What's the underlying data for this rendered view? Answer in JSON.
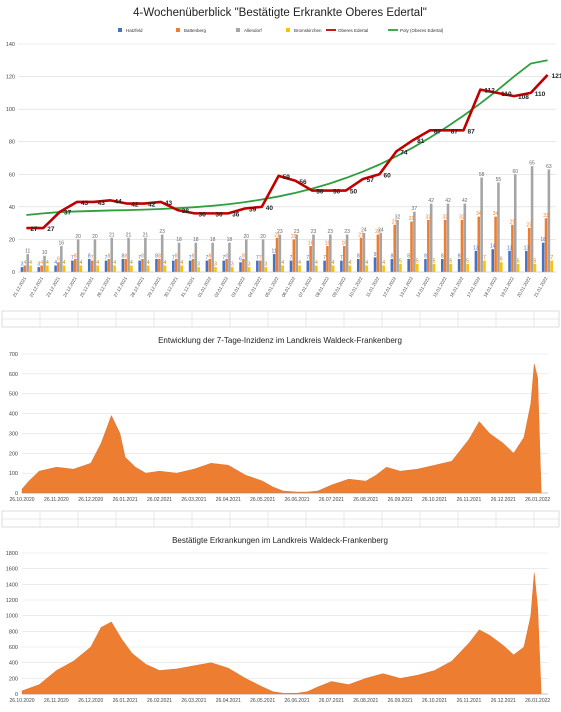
{
  "chart_data": [
    {
      "type": "bar",
      "title": "4-Wochenüberblick \"Bestätigte Erkrankte Oberes Edertal\"",
      "ylim": [
        0,
        140
      ],
      "yticks": [
        0,
        20,
        40,
        60,
        80,
        100,
        120,
        140
      ],
      "categories": [
        "21.12.2021",
        "22.12.2021",
        "23.12.2021",
        "24.12.2021",
        "25.12.2021",
        "26.12.2021",
        "27.12.2021",
        "28.12.2021",
        "29.12.2021",
        "30.12.2021",
        "31.12.2021",
        "01.01.2022",
        "02.01.2022",
        "03.01.2022",
        "04.01.2022",
        "05.01.2022",
        "06.01.2022",
        "07.01.2022",
        "08.01.2022",
        "09.01.2022",
        "10.01.2022",
        "11.01.2022",
        "12.01.2022",
        "13.01.2022",
        "14.01.2022",
        "15.01.2022",
        "16.01.2022",
        "17.01.2022",
        "18.01.2022",
        "19.01.2022",
        "20.01.2022",
        "21.01.2022"
      ],
      "series": [
        {
          "name": "Hatzfeld",
          "kind": "bar",
          "color": "#4472c4",
          "values": [
            3,
            3,
            4,
            7,
            8,
            7,
            8,
            7,
            8,
            7,
            7,
            7,
            7,
            6,
            7,
            11,
            7,
            7,
            7,
            7,
            8,
            9,
            8,
            8,
            8,
            8,
            8,
            13,
            14,
            13,
            13,
            18
          ]
        },
        {
          "name": "Battenberg",
          "kind": "bar",
          "color": "#ed7d31",
          "values": [
            4,
            4,
            6,
            8,
            7,
            8,
            8,
            8,
            8,
            8,
            8,
            8,
            8,
            8,
            7,
            21,
            20,
            16,
            16,
            16,
            21,
            23,
            29,
            31,
            32,
            32,
            32,
            34,
            34,
            29,
            27,
            33
          ]
        },
        {
          "name": "Allendorf",
          "kind": "bar",
          "color": "#a5a5a5",
          "values": [
            11,
            10,
            16,
            20,
            20,
            21,
            21,
            21,
            23,
            18,
            18,
            18,
            18,
            20,
            20,
            23,
            23,
            23,
            23,
            23,
            24,
            24,
            32,
            37,
            42,
            42,
            42,
            58,
            55,
            60,
            65,
            63
          ]
        },
        {
          "name": "Bromskirchen",
          "kind": "bar",
          "color": "#ffc000",
          "values": [
            4,
            4,
            4,
            4,
            4,
            4,
            4,
            4,
            4,
            4,
            3,
            3,
            3,
            3,
            3,
            4,
            4,
            4,
            4,
            4,
            4,
            4,
            5,
            5,
            5,
            5,
            5,
            7,
            6,
            5,
            5,
            7
          ]
        },
        {
          "name": "Oberes Edertal",
          "kind": "line",
          "color": "#c00000",
          "values": [
            27,
            27,
            37,
            43,
            43,
            44,
            42,
            42,
            43,
            38,
            36,
            36,
            36,
            39,
            40,
            59,
            56,
            50,
            50,
            50,
            57,
            60,
            74,
            81,
            87,
            87,
            87,
            112,
            110,
            108,
            110,
            121
          ]
        },
        {
          "name": "Poly (Oberes Edertal)",
          "kind": "trend",
          "color": "#2e9e3e",
          "values": [
            35,
            36,
            36.8,
            37.2,
            37.5,
            37.8,
            38,
            38.3,
            38.7,
            39.2,
            39.8,
            40.6,
            41.6,
            42.9,
            44.5,
            46.4,
            48.6,
            51.2,
            54.2,
            57.7,
            61.6,
            66,
            71,
            76.5,
            82.5,
            89,
            96,
            103.5,
            111.5,
            120,
            128,
            137
          ]
        }
      ]
    },
    {
      "type": "area",
      "title": "Entwicklung der 7-Tage-Inzidenz im Landkreis Waldeck-Frankenberg",
      "ylim": [
        0,
        700
      ],
      "yticks": [
        0,
        100,
        200,
        300,
        400,
        500,
        600,
        700
      ],
      "xticks": [
        "26.10.2020",
        "26.11.2020",
        "26.12.2020",
        "26.01.2021",
        "26.02.2021",
        "26.03.2021",
        "26.04.2021",
        "26.05.2021",
        "26.06.2021",
        "26.07.2021",
        "26.08.2021",
        "26.09.2021",
        "26.10.2021",
        "26.11.2021",
        "26.12.2021",
        "26.01.2022"
      ],
      "color": "#ed7d31",
      "x": [
        0,
        0.2,
        0.5,
        1,
        1.5,
        2,
        2.3,
        2.6,
        2.85,
        3,
        3.3,
        3.6,
        4,
        4.5,
        5,
        5.5,
        6,
        6.5,
        7,
        7.3,
        7.6,
        8,
        8.3,
        8.6,
        9,
        9.5,
        10,
        10.3,
        10.6,
        11,
        11.5,
        12,
        12.5,
        13,
        13.3,
        13.6,
        14,
        14.3,
        14.6,
        14.8,
        14.9,
        15,
        15.1
      ],
      "values": [
        20,
        60,
        110,
        130,
        120,
        150,
        250,
        390,
        300,
        180,
        130,
        100,
        110,
        100,
        120,
        150,
        140,
        90,
        60,
        30,
        10,
        5,
        5,
        10,
        40,
        70,
        60,
        90,
        130,
        110,
        120,
        140,
        160,
        270,
        360,
        300,
        250,
        200,
        280,
        450,
        650,
        580,
        20
      ]
    },
    {
      "type": "area",
      "title": "Bestätigte Erkrankungen im Landkreis Waldeck-Frankenberg",
      "ylim": [
        0,
        1800
      ],
      "yticks": [
        0,
        200,
        400,
        600,
        800,
        1000,
        1200,
        1400,
        1600,
        1800
      ],
      "xticks": [
        "26.10.2020",
        "26.11.2020",
        "26.12.2020",
        "26.01.2021",
        "26.02.2021",
        "26.03.2021",
        "26.04.2021",
        "26.05.2021",
        "26.06.2021",
        "26.07.2021",
        "26.08.2021",
        "26.09.2021",
        "26.10.2021",
        "26.11.2021",
        "26.12.2021",
        "26.01.2022"
      ],
      "color": "#ed7d31",
      "x": [
        0,
        0.5,
        1,
        1.5,
        2,
        2.3,
        2.6,
        2.9,
        3.2,
        3.6,
        4,
        4.5,
        5,
        5.5,
        6,
        6.5,
        7,
        7.3,
        7.6,
        8,
        8.3,
        8.6,
        9,
        9.5,
        10,
        10.5,
        11,
        11.5,
        12,
        12.5,
        13,
        13.3,
        13.6,
        14,
        14.3,
        14.6,
        14.8,
        14.9,
        15,
        15.1
      ],
      "values": [
        40,
        120,
        300,
        420,
        600,
        850,
        920,
        700,
        520,
        380,
        300,
        320,
        360,
        400,
        330,
        200,
        90,
        30,
        10,
        10,
        30,
        90,
        160,
        120,
        200,
        260,
        200,
        240,
        300,
        420,
        650,
        820,
        750,
        620,
        500,
        600,
        1000,
        1550,
        1100,
        40
      ]
    }
  ]
}
